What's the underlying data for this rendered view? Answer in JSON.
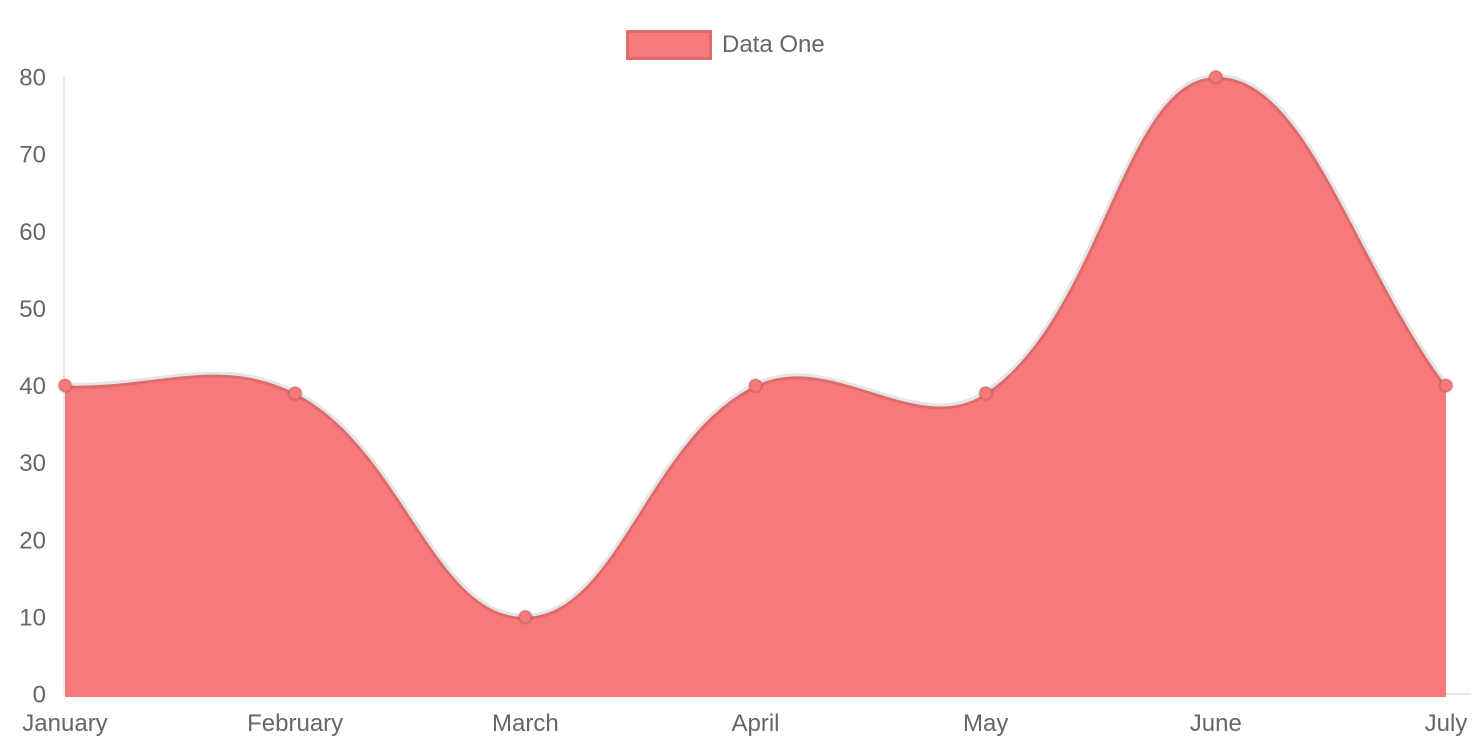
{
  "legend": {
    "position": "top-center",
    "items": [
      {
        "label": "Data One",
        "color": "#f87979"
      }
    ]
  },
  "chart_data": {
    "type": "area",
    "title": "",
    "xlabel": "",
    "ylabel": "",
    "categories": [
      "January",
      "February",
      "March",
      "April",
      "May",
      "June",
      "July"
    ],
    "series": [
      {
        "name": "Data One",
        "values": [
          40,
          39,
          10,
          40,
          39,
          80,
          40
        ]
      }
    ],
    "ylim": [
      0,
      80
    ],
    "yticks": [
      0,
      10,
      20,
      30,
      40,
      50,
      60,
      70,
      80
    ],
    "grid": false,
    "line_tension": 0.4,
    "legend_position": "top",
    "colors": {
      "fill": "#f87979",
      "point_fill": "#f87979",
      "stroke": "rgba(0,0,0,0.1)",
      "axis_line": "#e8e8e8",
      "tick_text": "#666666"
    }
  }
}
